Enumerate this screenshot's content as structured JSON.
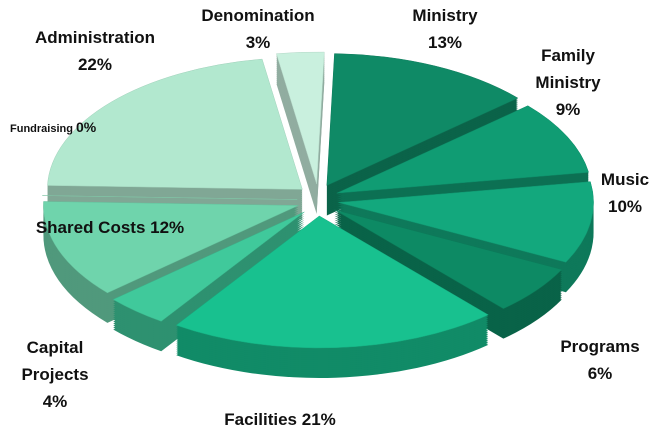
{
  "chart_data": {
    "type": "pie",
    "categories": [
      "Ministry",
      "Family Ministry",
      "Music",
      "Programs",
      "Facilities",
      "Capital Projects",
      "Shared Costs",
      "Fundraising",
      "Administration",
      "Denomination"
    ],
    "values": [
      13,
      9,
      10,
      6,
      21,
      4,
      12,
      0,
      22,
      3
    ],
    "value_labels": [
      "13%",
      "9%",
      "10%",
      "6%",
      "21%",
      "4%",
      "12%",
      "0%",
      "22%",
      "3%"
    ],
    "colors": [
      "#0f8a66",
      "#109c73",
      "#13a87d",
      "#0d8a64",
      "#18c18f",
      "#40c99b",
      "#6fd4ac",
      "#8edcb9",
      "#b2e8cf",
      "#c9f0de"
    ]
  }
}
